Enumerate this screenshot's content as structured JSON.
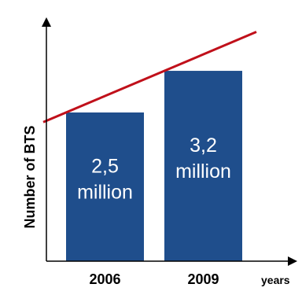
{
  "chart_data": {
    "type": "bar",
    "categories": [
      "2006",
      "2009"
    ],
    "values": [
      2.5,
      3.2
    ],
    "data_labels": [
      [
        "2,5",
        "million"
      ],
      [
        "3,2",
        "million"
      ]
    ],
    "ylabel": "Number of BTS",
    "xlabel": "years",
    "unit": "million",
    "ylim": [
      0,
      4.1
    ],
    "trend_line": true,
    "grid": false,
    "colors": {
      "bars": "#1f4e8c",
      "trend": "#c0101a",
      "bar_text": "#ffffff"
    }
  }
}
